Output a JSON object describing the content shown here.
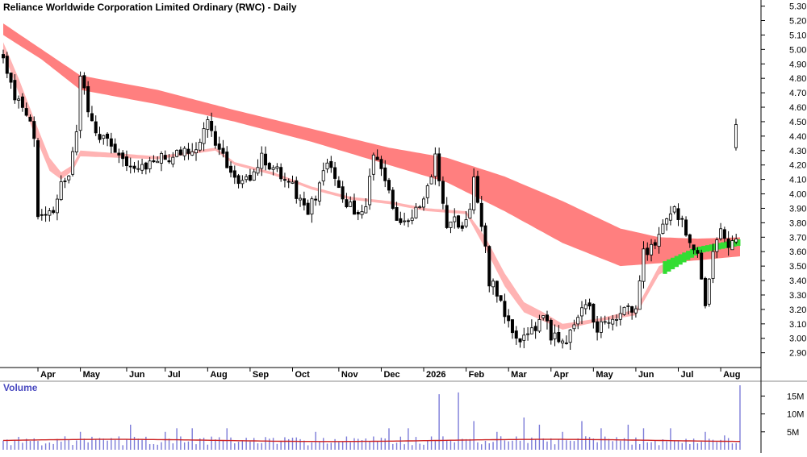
{
  "chart_data": {
    "type": "candlestick",
    "title": "Reliance Worldwide Corporation Limited Ordinary (RWC) - Daily",
    "price_axis": {
      "ylim": [
        2.82,
        5.32
      ],
      "ticks": [
        "5.30",
        "5.20",
        "5.10",
        "5.00",
        "4.90",
        "4.80",
        "4.70",
        "4.60",
        "4.50",
        "4.40",
        "4.30",
        "4.20",
        "4.10",
        "4.00",
        "3.90",
        "3.80",
        "3.70",
        "3.60",
        "3.50",
        "3.40",
        "3.30",
        "3.20",
        "3.10",
        "3.00",
        "2.90"
      ]
    },
    "x_axis": {
      "labels": [
        {
          "text": "Apr",
          "idx": 9
        },
        {
          "text": "May",
          "idx": 20
        },
        {
          "text": "Jun",
          "idx": 32
        },
        {
          "text": "Jul",
          "idx": 42
        },
        {
          "text": "Aug",
          "idx": 53
        },
        {
          "text": "Sep",
          "idx": 64
        },
        {
          "text": "Oct",
          "idx": 75
        },
        {
          "text": "Nov",
          "idx": 87
        },
        {
          "text": "Dec",
          "idx": 98
        },
        {
          "text": "2026",
          "idx": 109
        },
        {
          "text": "Feb",
          "idx": 120
        },
        {
          "text": "Mar",
          "idx": 131
        },
        {
          "text": "Apr",
          "idx": 142
        },
        {
          "text": "May",
          "idx": 153
        },
        {
          "text": "Jun",
          "idx": 164
        },
        {
          "text": "Jul",
          "idx": 175
        },
        {
          "text": "Aug",
          "idx": 186
        }
      ]
    },
    "price_anchors": [
      [
        0,
        4.98
      ],
      [
        2,
        4.75
      ],
      [
        4,
        4.62
      ],
      [
        6,
        4.55
      ],
      [
        8,
        4.4
      ],
      [
        9,
        3.82
      ],
      [
        11,
        3.88
      ],
      [
        13,
        3.85
      ],
      [
        15,
        4.05
      ],
      [
        17,
        4.15
      ],
      [
        19,
        4.4
      ],
      [
        20,
        4.8
      ],
      [
        22,
        4.6
      ],
      [
        24,
        4.4
      ],
      [
        27,
        4.38
      ],
      [
        30,
        4.3
      ],
      [
        32,
        4.22
      ],
      [
        34,
        4.18
      ],
      [
        37,
        4.2
      ],
      [
        40,
        4.25
      ],
      [
        43,
        4.25
      ],
      [
        46,
        4.3
      ],
      [
        49,
        4.28
      ],
      [
        51,
        4.35
      ],
      [
        53,
        4.52
      ],
      [
        55,
        4.35
      ],
      [
        58,
        4.22
      ],
      [
        61,
        4.1
      ],
      [
        64,
        4.12
      ],
      [
        67,
        4.25
      ],
      [
        70,
        4.18
      ],
      [
        73,
        4.12
      ],
      [
        75,
        4.05
      ],
      [
        77,
        3.95
      ],
      [
        79,
        3.88
      ],
      [
        82,
        4.05
      ],
      [
        84,
        4.22
      ],
      [
        86,
        4.1
      ],
      [
        88,
        3.98
      ],
      [
        90,
        3.92
      ],
      [
        92,
        3.85
      ],
      [
        94,
        3.95
      ],
      [
        96,
        4.3
      ],
      [
        98,
        4.18
      ],
      [
        100,
        4.05
      ],
      [
        102,
        3.78
      ],
      [
        104,
        3.85
      ],
      [
        106,
        3.85
      ],
      [
        108,
        3.9
      ],
      [
        110,
        4.02
      ],
      [
        112,
        4.25
      ],
      [
        113,
        4.08
      ],
      [
        115,
        3.8
      ],
      [
        117,
        3.82
      ],
      [
        119,
        3.78
      ],
      [
        121,
        3.9
      ],
      [
        122,
        4.12
      ],
      [
        124,
        3.8
      ],
      [
        126,
        3.4
      ],
      [
        128,
        3.32
      ],
      [
        130,
        3.15
      ],
      [
        132,
        3.05
      ],
      [
        134,
        2.95
      ],
      [
        136,
        3.05
      ],
      [
        138,
        3.08
      ],
      [
        140,
        3.15
      ],
      [
        142,
        3.02
      ],
      [
        144,
        2.98
      ],
      [
        146,
        2.96
      ],
      [
        148,
        3.1
      ],
      [
        150,
        3.25
      ],
      [
        152,
        3.22
      ],
      [
        154,
        3.05
      ],
      [
        156,
        3.12
      ],
      [
        158,
        3.15
      ],
      [
        160,
        3.18
      ],
      [
        162,
        3.2
      ],
      [
        164,
        3.22
      ],
      [
        166,
        3.58
      ],
      [
        168,
        3.62
      ],
      [
        170,
        3.72
      ],
      [
        172,
        3.82
      ],
      [
        174,
        3.88
      ],
      [
        176,
        3.8
      ],
      [
        178,
        3.65
      ],
      [
        180,
        3.55
      ],
      [
        182,
        3.25
      ],
      [
        184,
        3.62
      ],
      [
        186,
        3.72
      ],
      [
        188,
        3.66
      ],
      [
        190,
        3.68
      ],
      [
        191,
        3.65
      ]
    ],
    "last_bar": {
      "open": 4.32,
      "high": 4.52,
      "low": 4.3,
      "close": 4.48
    },
    "ribbons": [
      {
        "color": "#ff7f7f",
        "upper": [
          [
            0,
            5.18
          ],
          [
            10,
            5.0
          ],
          [
            20,
            4.82
          ],
          [
            40,
            4.72
          ],
          [
            60,
            4.58
          ],
          [
            80,
            4.45
          ],
          [
            100,
            4.32
          ],
          [
            115,
            4.25
          ],
          [
            130,
            4.12
          ],
          [
            145,
            3.95
          ],
          [
            160,
            3.76
          ],
          [
            170,
            3.7
          ],
          [
            180,
            3.69
          ],
          [
            192,
            3.7
          ]
        ],
        "lower": [
          [
            0,
            5.1
          ],
          [
            10,
            4.93
          ],
          [
            20,
            4.72
          ],
          [
            40,
            4.62
          ],
          [
            60,
            4.5
          ],
          [
            80,
            4.36
          ],
          [
            100,
            4.2
          ],
          [
            115,
            4.08
          ],
          [
            130,
            3.88
          ],
          [
            145,
            3.66
          ],
          [
            160,
            3.5
          ],
          [
            170,
            3.52
          ],
          [
            180,
            3.54
          ],
          [
            192,
            3.57
          ]
        ]
      },
      {
        "color": "#ffb3b3",
        "upper": [
          [
            0,
            5.05
          ],
          [
            4,
            4.8
          ],
          [
            8,
            4.52
          ],
          [
            12,
            4.25
          ],
          [
            15,
            4.15
          ],
          [
            18,
            4.2
          ],
          [
            20,
            4.3
          ],
          [
            40,
            4.26
          ],
          [
            55,
            4.32
          ],
          [
            60,
            4.22
          ],
          [
            70,
            4.15
          ],
          [
            80,
            4.05
          ],
          [
            90,
            3.98
          ],
          [
            100,
            3.95
          ],
          [
            110,
            3.9
          ],
          [
            120,
            3.88
          ],
          [
            125,
            3.7
          ],
          [
            130,
            3.45
          ],
          [
            135,
            3.25
          ],
          [
            140,
            3.18
          ],
          [
            145,
            3.1
          ],
          [
            150,
            3.12
          ],
          [
            155,
            3.14
          ],
          [
            164,
            3.2
          ],
          [
            170,
            3.5
          ],
          [
            180,
            3.62
          ],
          [
            192,
            3.68
          ]
        ],
        "lower": [
          [
            0,
            4.98
          ],
          [
            4,
            4.7
          ],
          [
            8,
            4.42
          ],
          [
            12,
            4.16
          ],
          [
            15,
            4.1
          ],
          [
            18,
            4.16
          ],
          [
            20,
            4.26
          ],
          [
            40,
            4.24
          ],
          [
            55,
            4.3
          ],
          [
            60,
            4.2
          ],
          [
            70,
            4.13
          ],
          [
            80,
            4.03
          ],
          [
            90,
            3.96
          ],
          [
            100,
            3.93
          ],
          [
            110,
            3.88
          ],
          [
            120,
            3.86
          ],
          [
            125,
            3.62
          ],
          [
            130,
            3.36
          ],
          [
            135,
            3.18
          ],
          [
            140,
            3.12
          ],
          [
            145,
            3.06
          ],
          [
            150,
            3.09
          ],
          [
            155,
            3.12
          ],
          [
            164,
            3.16
          ],
          [
            170,
            3.44
          ],
          [
            180,
            3.6
          ],
          [
            192,
            3.66
          ]
        ]
      }
    ],
    "volume": {
      "title": "Volume",
      "ylim": [
        0,
        18
      ],
      "ticks": [
        {
          "label": "15M",
          "v": 15
        },
        {
          "label": "10M",
          "v": 10
        },
        {
          "label": "5M",
          "v": 5
        }
      ],
      "spikes": [
        [
          20,
          5
        ],
        [
          33,
          7
        ],
        [
          42,
          5
        ],
        [
          45,
          6
        ],
        [
          49,
          6
        ],
        [
          58,
          6
        ],
        [
          81,
          5
        ],
        [
          100,
          6
        ],
        [
          105,
          6
        ],
        [
          113,
          15.5
        ],
        [
          118,
          16
        ],
        [
          122,
          8
        ],
        [
          128,
          5
        ],
        [
          135,
          9
        ],
        [
          139,
          7
        ],
        [
          145,
          5
        ],
        [
          150,
          8
        ],
        [
          155,
          6
        ],
        [
          162,
          7
        ],
        [
          166,
          6
        ],
        [
          173,
          6
        ],
        [
          182,
          5
        ],
        [
          187,
          4
        ],
        [
          191,
          18
        ]
      ]
    }
  }
}
